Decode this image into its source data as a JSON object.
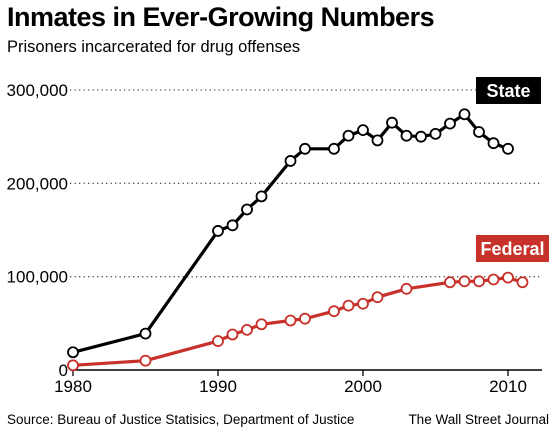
{
  "header": {
    "title": "Inmates in Ever-Growing Numbers",
    "subtitle": "Prisoners incarcerated for drug offenses"
  },
  "footer": {
    "source": "Source: Bureau of Justice Statisics, Department of Justice",
    "credit": "The Wall Street Journal"
  },
  "chart_data": {
    "type": "line",
    "title": "Inmates in Ever-Growing Numbers",
    "subtitle": "Prisoners incarcerated for drug offenses",
    "xlabel": "",
    "ylabel": "",
    "xlim": [
      1980,
      2011
    ],
    "ylim": [
      0,
      300000
    ],
    "x_ticks": [
      1980,
      1990,
      2000,
      2010
    ],
    "x_tick_labels": [
      "1980",
      "1990",
      "2000",
      "2010"
    ],
    "y_ticks": [
      0,
      100000,
      200000,
      300000
    ],
    "y_tick_labels": [
      "0",
      "100,000",
      "200,000",
      "300,000"
    ],
    "grid": "horizontal dotted",
    "legend": "inline labels at series ends",
    "colors": {
      "state": "#000000",
      "federal": "#c8302a"
    },
    "series": [
      {
        "name": "State",
        "points": [
          [
            1980,
            19000
          ],
          [
            1985,
            39000
          ],
          [
            1990,
            149000
          ],
          [
            1991,
            155000
          ],
          [
            1992,
            172000
          ],
          [
            1993,
            186000
          ],
          [
            1995,
            224000
          ],
          [
            1996,
            237000
          ],
          [
            1998,
            237000
          ],
          [
            1999,
            251000
          ],
          [
            2000,
            257000
          ],
          [
            2001,
            246000
          ],
          [
            2002,
            265000
          ],
          [
            2003,
            251000
          ],
          [
            2004,
            250000
          ],
          [
            2005,
            253000
          ],
          [
            2006,
            264000
          ],
          [
            2007,
            274000
          ],
          [
            2008,
            255000
          ],
          [
            2009,
            243000
          ],
          [
            2010,
            237000
          ]
        ]
      },
      {
        "name": "Federal",
        "points": [
          [
            1980,
            5000
          ],
          [
            1985,
            10000
          ],
          [
            1990,
            31000
          ],
          [
            1991,
            38000
          ],
          [
            1992,
            43000
          ],
          [
            1993,
            49000
          ],
          [
            1995,
            53000
          ],
          [
            1996,
            55000
          ],
          [
            1998,
            63000
          ],
          [
            1999,
            69000
          ],
          [
            2000,
            71000
          ],
          [
            2001,
            78000
          ],
          [
            2003,
            87000
          ],
          [
            2006,
            94000
          ],
          [
            2007,
            95000
          ],
          [
            2008,
            95000
          ],
          [
            2009,
            97000
          ],
          [
            2010,
            99000
          ],
          [
            2011,
            94000
          ]
        ]
      }
    ]
  }
}
